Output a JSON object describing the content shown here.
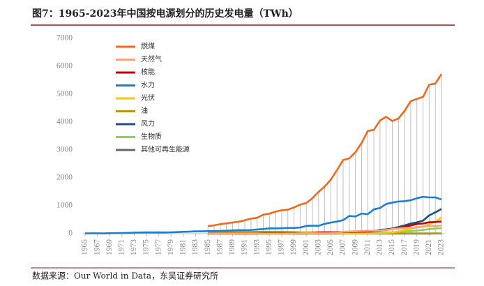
{
  "chart_data": {
    "type": "line",
    "title": "图7：1965-2023年中国按电源划分的历史发电量（TWh）",
    "source": "数据来源：Our World in Data，东吴证券研究所",
    "x": [
      1965,
      1966,
      1967,
      1968,
      1969,
      1970,
      1971,
      1972,
      1973,
      1974,
      1975,
      1976,
      1977,
      1978,
      1979,
      1980,
      1981,
      1982,
      1983,
      1984,
      1985,
      1986,
      1987,
      1988,
      1989,
      1990,
      1991,
      1992,
      1993,
      1994,
      1995,
      1996,
      1997,
      1998,
      1999,
      2000,
      2001,
      2002,
      2003,
      2004,
      2005,
      2006,
      2007,
      2008,
      2009,
      2010,
      2011,
      2012,
      2013,
      2014,
      2015,
      2016,
      2017,
      2018,
      2019,
      2020,
      2021,
      2022,
      2023
    ],
    "xlim": [
      1965,
      2023
    ],
    "xticks": [
      1965,
      1967,
      1969,
      1971,
      1973,
      1975,
      1977,
      1979,
      1981,
      1983,
      1985,
      1987,
      1989,
      1991,
      1993,
      1995,
      1997,
      1999,
      2001,
      2003,
      2005,
      2007,
      2009,
      2011,
      2013,
      2015,
      2017,
      2019,
      2021,
      2023
    ],
    "ylim": [
      0,
      7000
    ],
    "yticks": [
      0,
      1000,
      2000,
      3000,
      4000,
      5000,
      6000,
      7000
    ],
    "drop_lines": true,
    "legend": "upper left",
    "series": [
      {
        "name": "燃煤",
        "color": "#ee6a1d",
        "values": [
          null,
          null,
          null,
          null,
          null,
          null,
          null,
          null,
          null,
          null,
          null,
          null,
          null,
          null,
          null,
          null,
          null,
          null,
          null,
          null,
          270,
          300,
          340,
          370,
          400,
          430,
          480,
          540,
          570,
          680,
          720,
          790,
          840,
          860,
          940,
          1040,
          1100,
          1270,
          1500,
          1690,
          1940,
          2280,
          2640,
          2700,
          2920,
          3250,
          3680,
          3720,
          4060,
          4190,
          4040,
          4130,
          4400,
          4750,
          4830,
          4900,
          5340,
          5380,
          5720
        ]
      },
      {
        "name": "天然气",
        "color": "#f8a67a",
        "values": [
          null,
          null,
          null,
          null,
          null,
          null,
          null,
          null,
          null,
          null,
          null,
          null,
          null,
          null,
          null,
          null,
          null,
          null,
          null,
          null,
          1,
          1,
          1,
          2,
          2,
          3,
          3,
          3,
          3,
          3,
          3,
          3,
          3,
          4,
          6,
          14,
          16,
          17,
          18,
          20,
          23,
          30,
          70,
          80,
          87,
          98,
          109,
          110,
          117,
          133,
          167,
          188,
          202,
          215,
          232,
          247,
          287,
          272,
          294
        ]
      },
      {
        "name": "核能",
        "color": "#c00000",
        "values": [
          null,
          null,
          null,
          null,
          null,
          null,
          null,
          null,
          null,
          null,
          null,
          null,
          null,
          null,
          null,
          null,
          null,
          null,
          null,
          null,
          0,
          0,
          0,
          0,
          0,
          0,
          0,
          0,
          3,
          14,
          13,
          14,
          14,
          14,
          15,
          17,
          17,
          25,
          43,
          50,
          53,
          55,
          62,
          68,
          70,
          74,
          86,
          97,
          112,
          132,
          171,
          213,
          248,
          295,
          348,
          366,
          408,
          418,
          435
        ]
      },
      {
        "name": "水力",
        "color": "#1b7fd1",
        "values": [
          10,
          13,
          13,
          12,
          17,
          21,
          25,
          29,
          39,
          41,
          48,
          46,
          48,
          45,
          50,
          58,
          66,
          74,
          86,
          87,
          92,
          95,
          100,
          109,
          118,
          127,
          125,
          131,
          152,
          167,
          191,
          188,
          196,
          204,
          204,
          222,
          277,
          288,
          283,
          354,
          397,
          436,
          486,
          637,
          616,
          722,
          699,
          872,
          920,
          1064,
          1114,
          1153,
          1165,
          1199,
          1270,
          1322,
          1300,
          1303,
          1226
        ]
      },
      {
        "name": "光伏",
        "color": "#f5c518",
        "values": [
          null,
          null,
          null,
          null,
          null,
          null,
          null,
          null,
          null,
          null,
          null,
          null,
          null,
          null,
          null,
          null,
          null,
          null,
          null,
          null,
          0,
          0,
          0,
          0,
          0,
          0,
          0,
          0,
          0,
          0,
          0,
          0,
          0,
          0,
          0,
          0,
          0,
          0,
          0,
          0,
          0,
          0,
          0,
          0,
          0,
          1,
          3,
          6,
          15,
          29,
          45,
          75,
          131,
          178,
          225,
          261,
          327,
          428,
          584
        ]
      },
      {
        "name": "油",
        "color": "#b8970f",
        "values": [
          null,
          null,
          null,
          null,
          null,
          null,
          null,
          null,
          null,
          null,
          null,
          null,
          null,
          null,
          null,
          null,
          null,
          null,
          null,
          null,
          50,
          52,
          54,
          56,
          58,
          60,
          62,
          64,
          66,
          66,
          66,
          66,
          66,
          60,
          58,
          48,
          47,
          46,
          50,
          52,
          45,
          40,
          30,
          25,
          20,
          15,
          12,
          10,
          8,
          8,
          10,
          10,
          10,
          10,
          10,
          10,
          11,
          11,
          12
        ]
      },
      {
        "name": "风力",
        "color": "#1f4e79",
        "values": [
          null,
          null,
          null,
          null,
          null,
          null,
          null,
          null,
          null,
          null,
          null,
          null,
          null,
          null,
          null,
          null,
          null,
          null,
          null,
          null,
          0,
          0,
          0,
          0,
          0,
          0,
          0,
          0,
          0,
          0,
          0,
          0,
          0,
          0,
          0,
          1,
          1,
          1,
          1,
          1,
          2,
          4,
          6,
          13,
          28,
          45,
          70,
          96,
          141,
          156,
          186,
          241,
          295,
          366,
          406,
          467,
          656,
          763,
          886
        ]
      },
      {
        "name": "生物质",
        "color": "#8fd14f",
        "values": [
          null,
          null,
          null,
          null,
          null,
          null,
          null,
          null,
          null,
          null,
          null,
          null,
          null,
          null,
          null,
          null,
          null,
          null,
          null,
          null,
          0,
          0,
          0,
          0,
          0,
          0,
          0,
          0,
          0,
          0,
          0,
          0,
          0,
          0,
          0,
          0,
          0,
          0,
          0,
          0,
          5,
          8,
          10,
          13,
          16,
          25,
          30,
          35,
          40,
          45,
          53,
          65,
          80,
          93,
          112,
          135,
          165,
          185,
          197
        ]
      },
      {
        "name": "其他可再生能源",
        "color": "#666666",
        "values": [
          null,
          null,
          null,
          null,
          null,
          null,
          null,
          null,
          null,
          null,
          null,
          null,
          null,
          null,
          null,
          null,
          null,
          null,
          null,
          null,
          0,
          0,
          0,
          0,
          0,
          0,
          0,
          0,
          0,
          0,
          0,
          0,
          0,
          0,
          0,
          0,
          0,
          0,
          0,
          0,
          0,
          0,
          0,
          0,
          0,
          0,
          0,
          0,
          0,
          0,
          1,
          1,
          1,
          1,
          2,
          2,
          2,
          3,
          3
        ]
      }
    ]
  }
}
